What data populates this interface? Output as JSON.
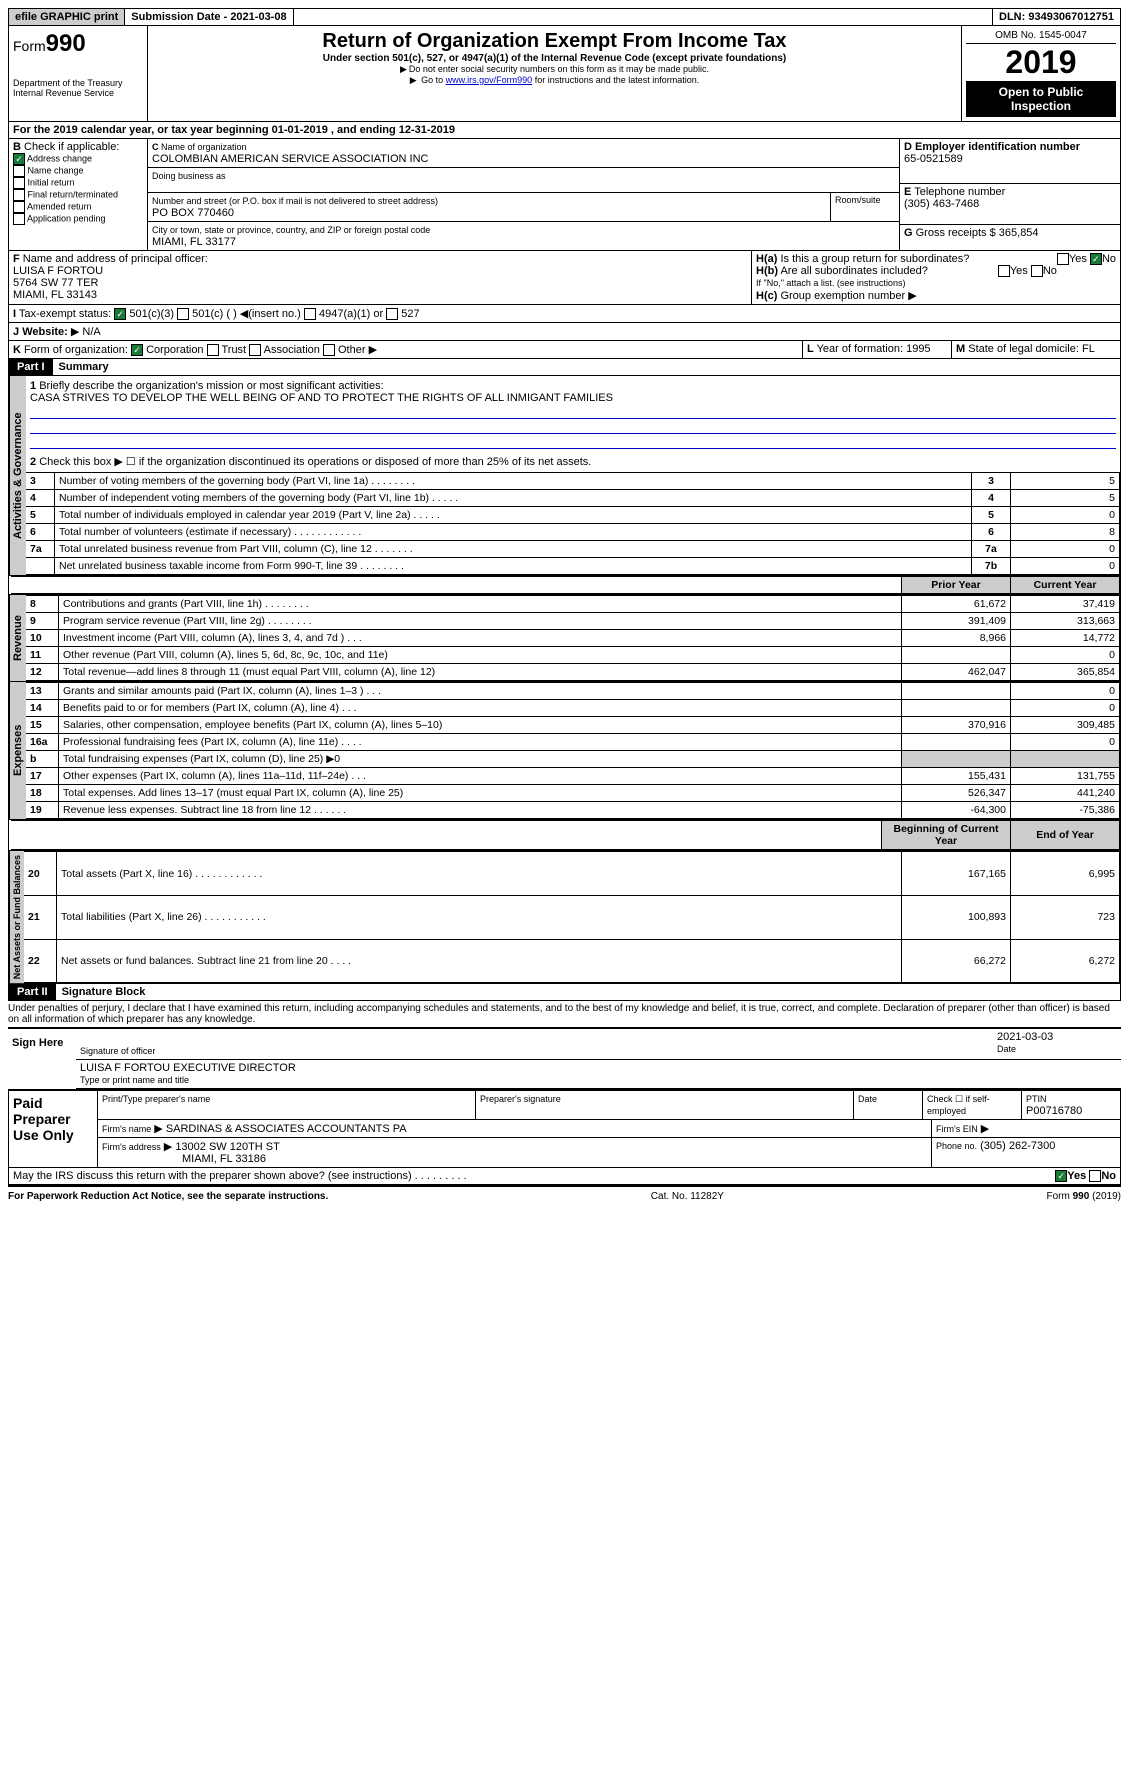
{
  "topbar": {
    "efile": "efile GRAPHIC print",
    "submission": "Submission Date - 2021-03-08",
    "dln": "DLN: 93493067012751"
  },
  "header": {
    "form_prefix": "Form",
    "form_number": "990",
    "title": "Return of Organization Exempt From Income Tax",
    "subtitle": "Under section 501(c), 527, or 4947(a)(1) of the Internal Revenue Code (except private foundations)",
    "privacy": "Do not enter social security numbers on this form as it may be made public.",
    "goto_prefix": "Go to ",
    "goto_link": "www.irs.gov/Form990",
    "goto_suffix": " for instructions and the latest information.",
    "dept": "Department of the Treasury\nInternal Revenue Service",
    "omb": "OMB No. 1545-0047",
    "year": "2019",
    "inspection": "Open to Public Inspection"
  },
  "period": {
    "line": "For the 2019 calendar year, or tax year beginning 01-01-2019    , and ending 12-31-2019"
  },
  "blockB": {
    "label": "Check if applicable:",
    "items": [
      "Address change",
      "Name change",
      "Initial return",
      "Final return/terminated",
      "Amended return",
      "Application pending"
    ],
    "checked_index": 0
  },
  "blockC": {
    "name_label": "Name of organization",
    "name": "COLOMBIAN AMERICAN SERVICE ASSOCIATION INC",
    "dba_label": "Doing business as",
    "addr_label": "Number and street (or P.O. box if mail is not delivered to street address)",
    "room_label": "Room/suite",
    "addr": "PO BOX 770460",
    "city_label": "City or town, state or province, country, and ZIP or foreign postal code",
    "city": "MIAMI, FL  33177"
  },
  "blockD": {
    "label": "Employer identification number",
    "value": "65-0521589"
  },
  "blockE": {
    "label": "Telephone number",
    "value": "(305) 463-7468"
  },
  "blockG": {
    "label": "Gross receipts $",
    "value": "365,854"
  },
  "blockF": {
    "label": "Name and address of principal officer:",
    "name": "LUISA F FORTOU",
    "addr1": "5764 SW 77 TER",
    "addr2": "MIAMI, FL  33143"
  },
  "blockH": {
    "a": "Is this a group return for subordinates?",
    "b": "Are all subordinates included?",
    "c": "Group exemption number",
    "note": "If \"No,\" attach a list. (see instructions)",
    "yes": "Yes",
    "no": "No"
  },
  "blockI": {
    "label": "Tax-exempt status:",
    "opt1": "501(c)(3)",
    "opt2": "501(c) (  )",
    "insert": "(insert no.)",
    "opt3": "4947(a)(1) or",
    "opt4": "527"
  },
  "blockJ": {
    "label": "Website:",
    "value": "N/A"
  },
  "blockK": {
    "label": "Form of organization:",
    "opts": [
      "Corporation",
      "Trust",
      "Association",
      "Other"
    ]
  },
  "blockL": {
    "label": "Year of formation:",
    "value": "1995"
  },
  "blockM": {
    "label": "State of legal domicile:",
    "value": "FL"
  },
  "part1": {
    "label": "Part I",
    "title": "Summary",
    "line1_label": "Briefly describe the organization's mission or most significant activities:",
    "mission": "CASA STRIVES TO DEVELOP THE WELL BEING OF AND TO PROTECT THE RIGHTS OF ALL INMIGANT FAMILIES",
    "line2": "Check this box ▶ ☐ if the organization discontinued its operations or disposed of more than 25% of its net assets."
  },
  "governance_rows": [
    {
      "n": "3",
      "text": "Number of voting members of the governing body (Part VI, line 1a)  . . . . . . . .",
      "box": "3",
      "val": "5"
    },
    {
      "n": "4",
      "text": "Number of independent voting members of the governing body (Part VI, line 1b)  . . . . .",
      "box": "4",
      "val": "5"
    },
    {
      "n": "5",
      "text": "Total number of individuals employed in calendar year 2019 (Part V, line 2a)  . . . . .",
      "box": "5",
      "val": "0"
    },
    {
      "n": "6",
      "text": "Total number of volunteers (estimate if necessary)  . . . . . . . . . . . .",
      "box": "6",
      "val": "8"
    },
    {
      "n": "7a",
      "text": "Total unrelated business revenue from Part VIII, column (C), line 12  . . . . . . .",
      "box": "7a",
      "val": "0"
    },
    {
      "n": "",
      "text": "Net unrelated business taxable income from Form 990-T, line 39  . . . . . . . .",
      "box": "7b",
      "val": "0"
    }
  ],
  "year_headers": {
    "prior": "Prior Year",
    "current": "Current Year"
  },
  "revenue_rows": [
    {
      "n": "8",
      "text": "Contributions and grants (Part VIII, line 1h)  . . . . . . . .",
      "prior": "61,672",
      "curr": "37,419"
    },
    {
      "n": "9",
      "text": "Program service revenue (Part VIII, line 2g)  . . . . . . . .",
      "prior": "391,409",
      "curr": "313,663"
    },
    {
      "n": "10",
      "text": "Investment income (Part VIII, column (A), lines 3, 4, and 7d )  . . .",
      "prior": "8,966",
      "curr": "14,772"
    },
    {
      "n": "11",
      "text": "Other revenue (Part VIII, column (A), lines 5, 6d, 8c, 9c, 10c, and 11e)",
      "prior": "",
      "curr": "0"
    },
    {
      "n": "12",
      "text": "Total revenue—add lines 8 through 11 (must equal Part VIII, column (A), line 12)",
      "prior": "462,047",
      "curr": "365,854"
    }
  ],
  "expense_rows": [
    {
      "n": "13",
      "text": "Grants and similar amounts paid (Part IX, column (A), lines 1–3 )  . . .",
      "prior": "",
      "curr": "0"
    },
    {
      "n": "14",
      "text": "Benefits paid to or for members (Part IX, column (A), line 4)  . . .",
      "prior": "",
      "curr": "0"
    },
    {
      "n": "15",
      "text": "Salaries, other compensation, employee benefits (Part IX, column (A), lines 5–10)",
      "prior": "370,916",
      "curr": "309,485"
    },
    {
      "n": "16a",
      "text": "Professional fundraising fees (Part IX, column (A), line 11e)  . . . .",
      "prior": "",
      "curr": "0"
    },
    {
      "n": "b",
      "text": "Total fundraising expenses (Part IX, column (D), line 25) ▶0",
      "prior": null,
      "curr": null
    },
    {
      "n": "17",
      "text": "Other expenses (Part IX, column (A), lines 11a–11d, 11f–24e)  . . .",
      "prior": "155,431",
      "curr": "131,755"
    },
    {
      "n": "18",
      "text": "Total expenses. Add lines 13–17 (must equal Part IX, column (A), line 25)",
      "prior": "526,347",
      "curr": "441,240"
    },
    {
      "n": "19",
      "text": "Revenue less expenses. Subtract line 18 from line 12  . . . . . .",
      "prior": "-64,300",
      "curr": "-75,386"
    }
  ],
  "netassets_headers": {
    "begin": "Beginning of Current Year",
    "end": "End of Year"
  },
  "netassets_rows": [
    {
      "n": "20",
      "text": "Total assets (Part X, line 16)  . . . . . . . . . . . .",
      "prior": "167,165",
      "curr": "6,995"
    },
    {
      "n": "21",
      "text": "Total liabilities (Part X, line 26)  . . . . . . . . . . .",
      "prior": "100,893",
      "curr": "723"
    },
    {
      "n": "22",
      "text": "Net assets or fund balances. Subtract line 21 from line 20  . . . .",
      "prior": "66,272",
      "curr": "6,272"
    }
  ],
  "part2": {
    "label": "Part II",
    "title": "Signature Block",
    "penalty": "Under penalties of perjury, I declare that I have examined this return, including accompanying schedules and statements, and to the best of my knowledge and belief, it is true, correct, and complete. Declaration of preparer (other than officer) is based on all information of which preparer has any knowledge."
  },
  "sign": {
    "here": "Sign Here",
    "sig_label": "Signature of officer",
    "date_label": "Date",
    "date": "2021-03-03",
    "name": "LUISA F FORTOU  EXECUTIVE DIRECTOR",
    "name_label": "Type or print name and title"
  },
  "paid": {
    "label": "Paid Preparer Use Only",
    "print_label": "Print/Type preparer's name",
    "sig_label": "Preparer's signature",
    "date_label": "Date",
    "check_label": "Check ☐ if self-employed",
    "ptin_label": "PTIN",
    "ptin": "P00716780",
    "firm_name_label": "Firm's name",
    "firm_name": "SARDINAS & ASSOCIATES ACCOUNTANTS PA",
    "ein_label": "Firm's EIN",
    "addr_label": "Firm's address",
    "addr1": "13002 SW 120TH ST",
    "addr2": "MIAMI, FL  33186",
    "phone_label": "Phone no.",
    "phone": "(305) 262-7300"
  },
  "discuss": {
    "text": "May the IRS discuss this return with the preparer shown above? (see instructions)  . . . . . . . . .",
    "yes": "Yes",
    "no": "No"
  },
  "footer": {
    "left": "For Paperwork Reduction Act Notice, see the separate instructions.",
    "center": "Cat. No. 11282Y",
    "right": "Form 990 (2019)"
  },
  "vert_labels": {
    "gov": "Activities & Governance",
    "rev": "Revenue",
    "exp": "Expenses",
    "net": "Net Assets or Fund Balances"
  }
}
